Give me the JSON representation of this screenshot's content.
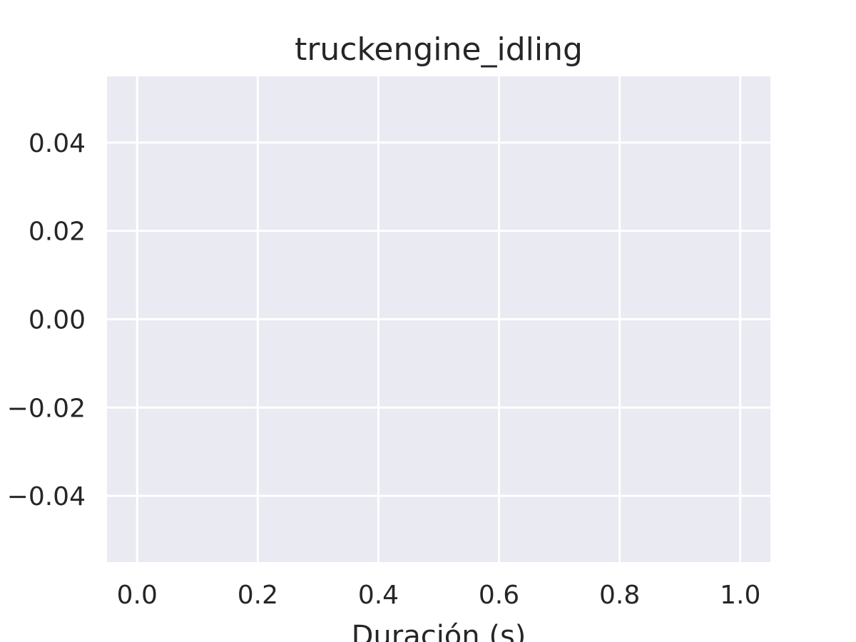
{
  "chart_data": {
    "type": "line",
    "title": "truckengine_idling",
    "xlabel": "Duración (s)",
    "ylabel": "",
    "x_ticks": [
      0.0,
      0.2,
      0.4,
      0.6,
      0.8,
      1.0
    ],
    "x_tick_labels": [
      "0.0",
      "0.2",
      "0.4",
      "0.6",
      "0.8",
      "1.0"
    ],
    "y_ticks": [
      0.04,
      0.02,
      0.0,
      -0.02,
      -0.04
    ],
    "y_tick_labels": [
      "0.04",
      "0.02",
      "0.00",
      "−0.02",
      "−0.04"
    ],
    "xlim": [
      -0.05,
      1.05
    ],
    "ylim": [
      -0.055,
      0.055
    ],
    "grid": true,
    "series": [],
    "background_color": "#eaeaf2",
    "grid_color": "#ffffff",
    "text_color": "#262626"
  }
}
